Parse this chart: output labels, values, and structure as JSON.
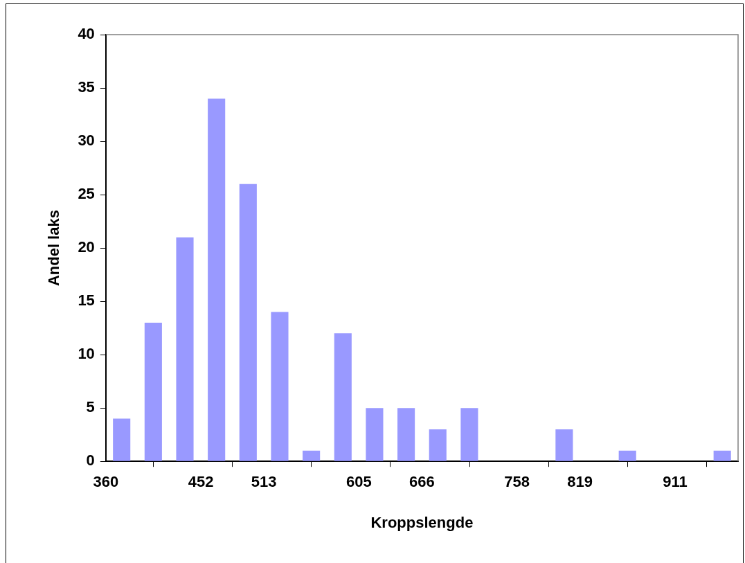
{
  "chart_data": {
    "type": "histogram",
    "xlabel": "Kroppslengde",
    "ylabel": "Andel laks",
    "color": "#9999ff",
    "bins": [
      360,
      390.6,
      421.2,
      451.8,
      482.4,
      513,
      543.6,
      574.2,
      604.8,
      635.4,
      666,
      696.6,
      727.2,
      757.8,
      788.4,
      819,
      849.6,
      880.2,
      910.8,
      941.4,
      972
    ],
    "values": [
      4,
      13,
      21,
      34,
      26,
      14,
      1,
      12,
      5,
      5,
      3,
      5,
      0,
      0,
      3,
      0,
      1,
      0,
      0,
      1
    ],
    "xlim": [
      360,
      972
    ],
    "xticks": [
      360,
      452,
      513,
      605,
      666,
      758,
      819,
      911,
      {
        "value": 972,
        "label": null
      }
    ],
    "ylim": [
      0,
      40
    ],
    "yticks": [
      0,
      5,
      10,
      15,
      20,
      25,
      30,
      35,
      40
    ],
    "grid": false,
    "legend": false
  }
}
